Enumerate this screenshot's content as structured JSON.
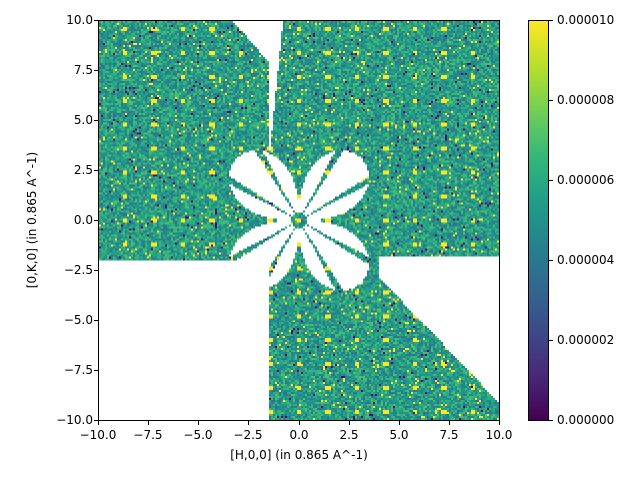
{
  "chart_data": {
    "type": "heatmap",
    "title": "",
    "xlabel": "[H,0,0] (in 0.865 A^-1)",
    "ylabel": "[0,K,0] (in 0.865 A^-1)",
    "xlim": [
      -10.0,
      10.0
    ],
    "ylim": [
      -10.0,
      10.0
    ],
    "xticks": [
      "−10.0",
      "−7.5",
      "−5.0",
      "−2.5",
      "0.0",
      "2.5",
      "5.0",
      "7.5",
      "10.0"
    ],
    "yticks": [
      "10.0",
      "7.5",
      "5.0",
      "2.5",
      "0.0",
      "−2.5",
      "−5.0",
      "−7.5",
      "−10.0"
    ],
    "colormap": "viridis",
    "colorbar": {
      "range": [
        0.0,
        1e-05
      ],
      "ticks": [
        "0.000010",
        "0.000008",
        "0.000006",
        "0.000004",
        "0.000002",
        "0.000000"
      ]
    },
    "grid": false,
    "description": "Reciprocal-space intensity slice; coverage in upper-left and lower-right elliptical sectors plus a full upper-right quadrant band, with a four-lobed clover-shaped empty region around the origin and Bragg peaks on a ~1.4 r.l.u. grid. Typical background ~0.000005-0.000006."
  }
}
